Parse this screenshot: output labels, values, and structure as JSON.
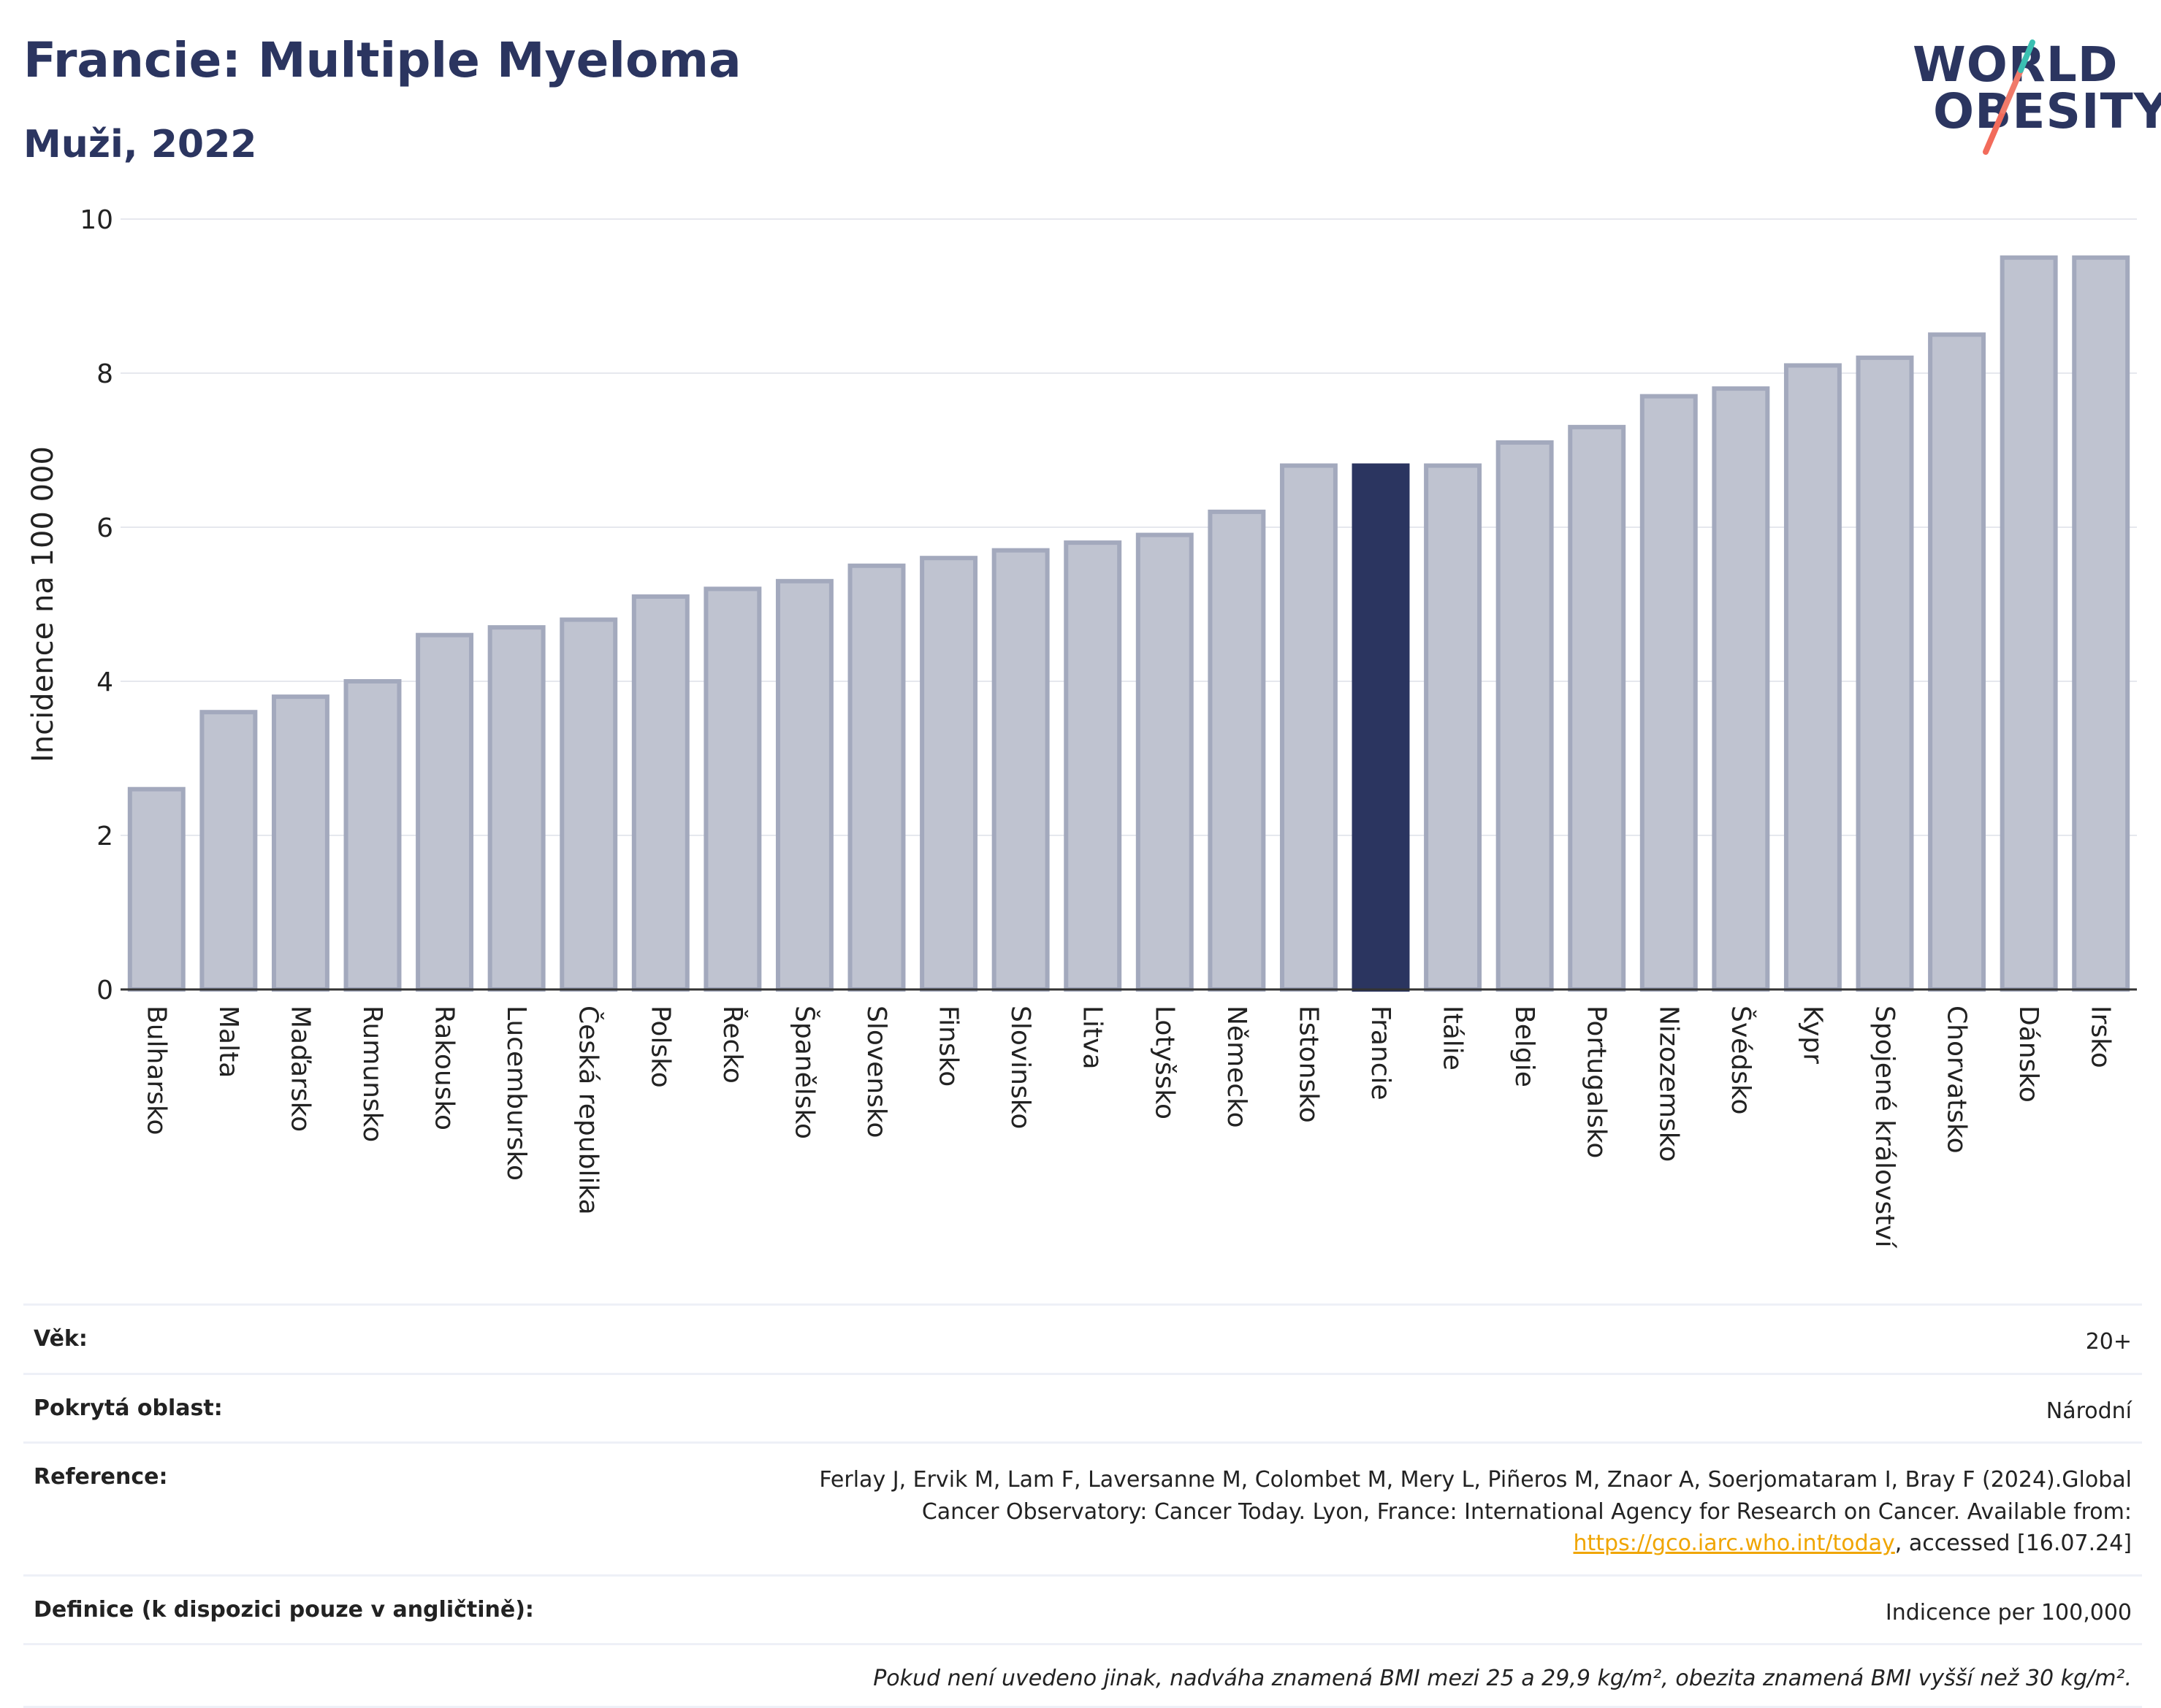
{
  "header": {
    "title": "Francie: Multiple Myeloma",
    "subtitle": "Muži, 2022",
    "logo_line1": "WORLD",
    "logo_line2": "OBESITY"
  },
  "colors": {
    "bar": "#bfc3d0",
    "bar_border": "#a3a9bd",
    "highlight": "#2b3560",
    "gridline": "#e6e8ee",
    "logo_slash_top": "#3bbfb2",
    "logo_slash_bottom": "#f26b5b"
  },
  "chart_data": {
    "type": "bar",
    "ylabel": "Incidence na 100 000",
    "xlabel": "",
    "ylim": [
      0,
      10
    ],
    "yticks": [
      0,
      2,
      4,
      6,
      8,
      10
    ],
    "grid": true,
    "highlight_category": "Francie",
    "categories": [
      "Bulharsko",
      "Malta",
      "Maďarsko",
      "Rumunsko",
      "Rakousko",
      "Lucembursko",
      "Česká republika",
      "Polsko",
      "Řecko",
      "Španělsko",
      "Slovensko",
      "Finsko",
      "Slovinsko",
      "Litva",
      "Lotyšsko",
      "Německo",
      "Estonsko",
      "Francie",
      "Itálie",
      "Belgie",
      "Portugalsko",
      "Nizozemsko",
      "Švédsko",
      "Kypr",
      "Spojené království",
      "Chorvatsko",
      "Dánsko",
      "Irsko"
    ],
    "values": [
      2.6,
      3.6,
      3.8,
      4.0,
      4.6,
      4.7,
      4.8,
      5.1,
      5.2,
      5.3,
      5.5,
      5.6,
      5.7,
      5.8,
      5.9,
      6.2,
      6.8,
      6.8,
      6.8,
      7.1,
      7.3,
      7.7,
      7.8,
      8.1,
      8.2,
      8.5,
      9.5,
      9.5
    ]
  },
  "info": {
    "age_label": "Věk:",
    "age_value": "20+",
    "area_label": "Pokrytá oblast:",
    "area_value": "Národní",
    "reference_label": "Reference:",
    "reference_text_1": "Ferlay J, Ervik M, Lam F, Laversanne M, Colombet M, Mery L, Piñeros M, Znaor A, Soerjomataram I, Bray F (2024).Global Cancer Observatory: Cancer Today. Lyon, France: International Agency for Research on Cancer. Available from: ",
    "reference_link": "https://gco.iarc.who.int/today",
    "reference_text_2": ", accessed [16.07.24]",
    "definition_label": "Definice (k dispozici pouze v angličtině):",
    "definition_value": "Indicence per 100,000",
    "note": "Pokud není uvedeno jinak, nadváha znamená BMI mezi 25 a 29,9 kg/m², obezita znamená BMI vyšší než 30 kg/m²."
  }
}
